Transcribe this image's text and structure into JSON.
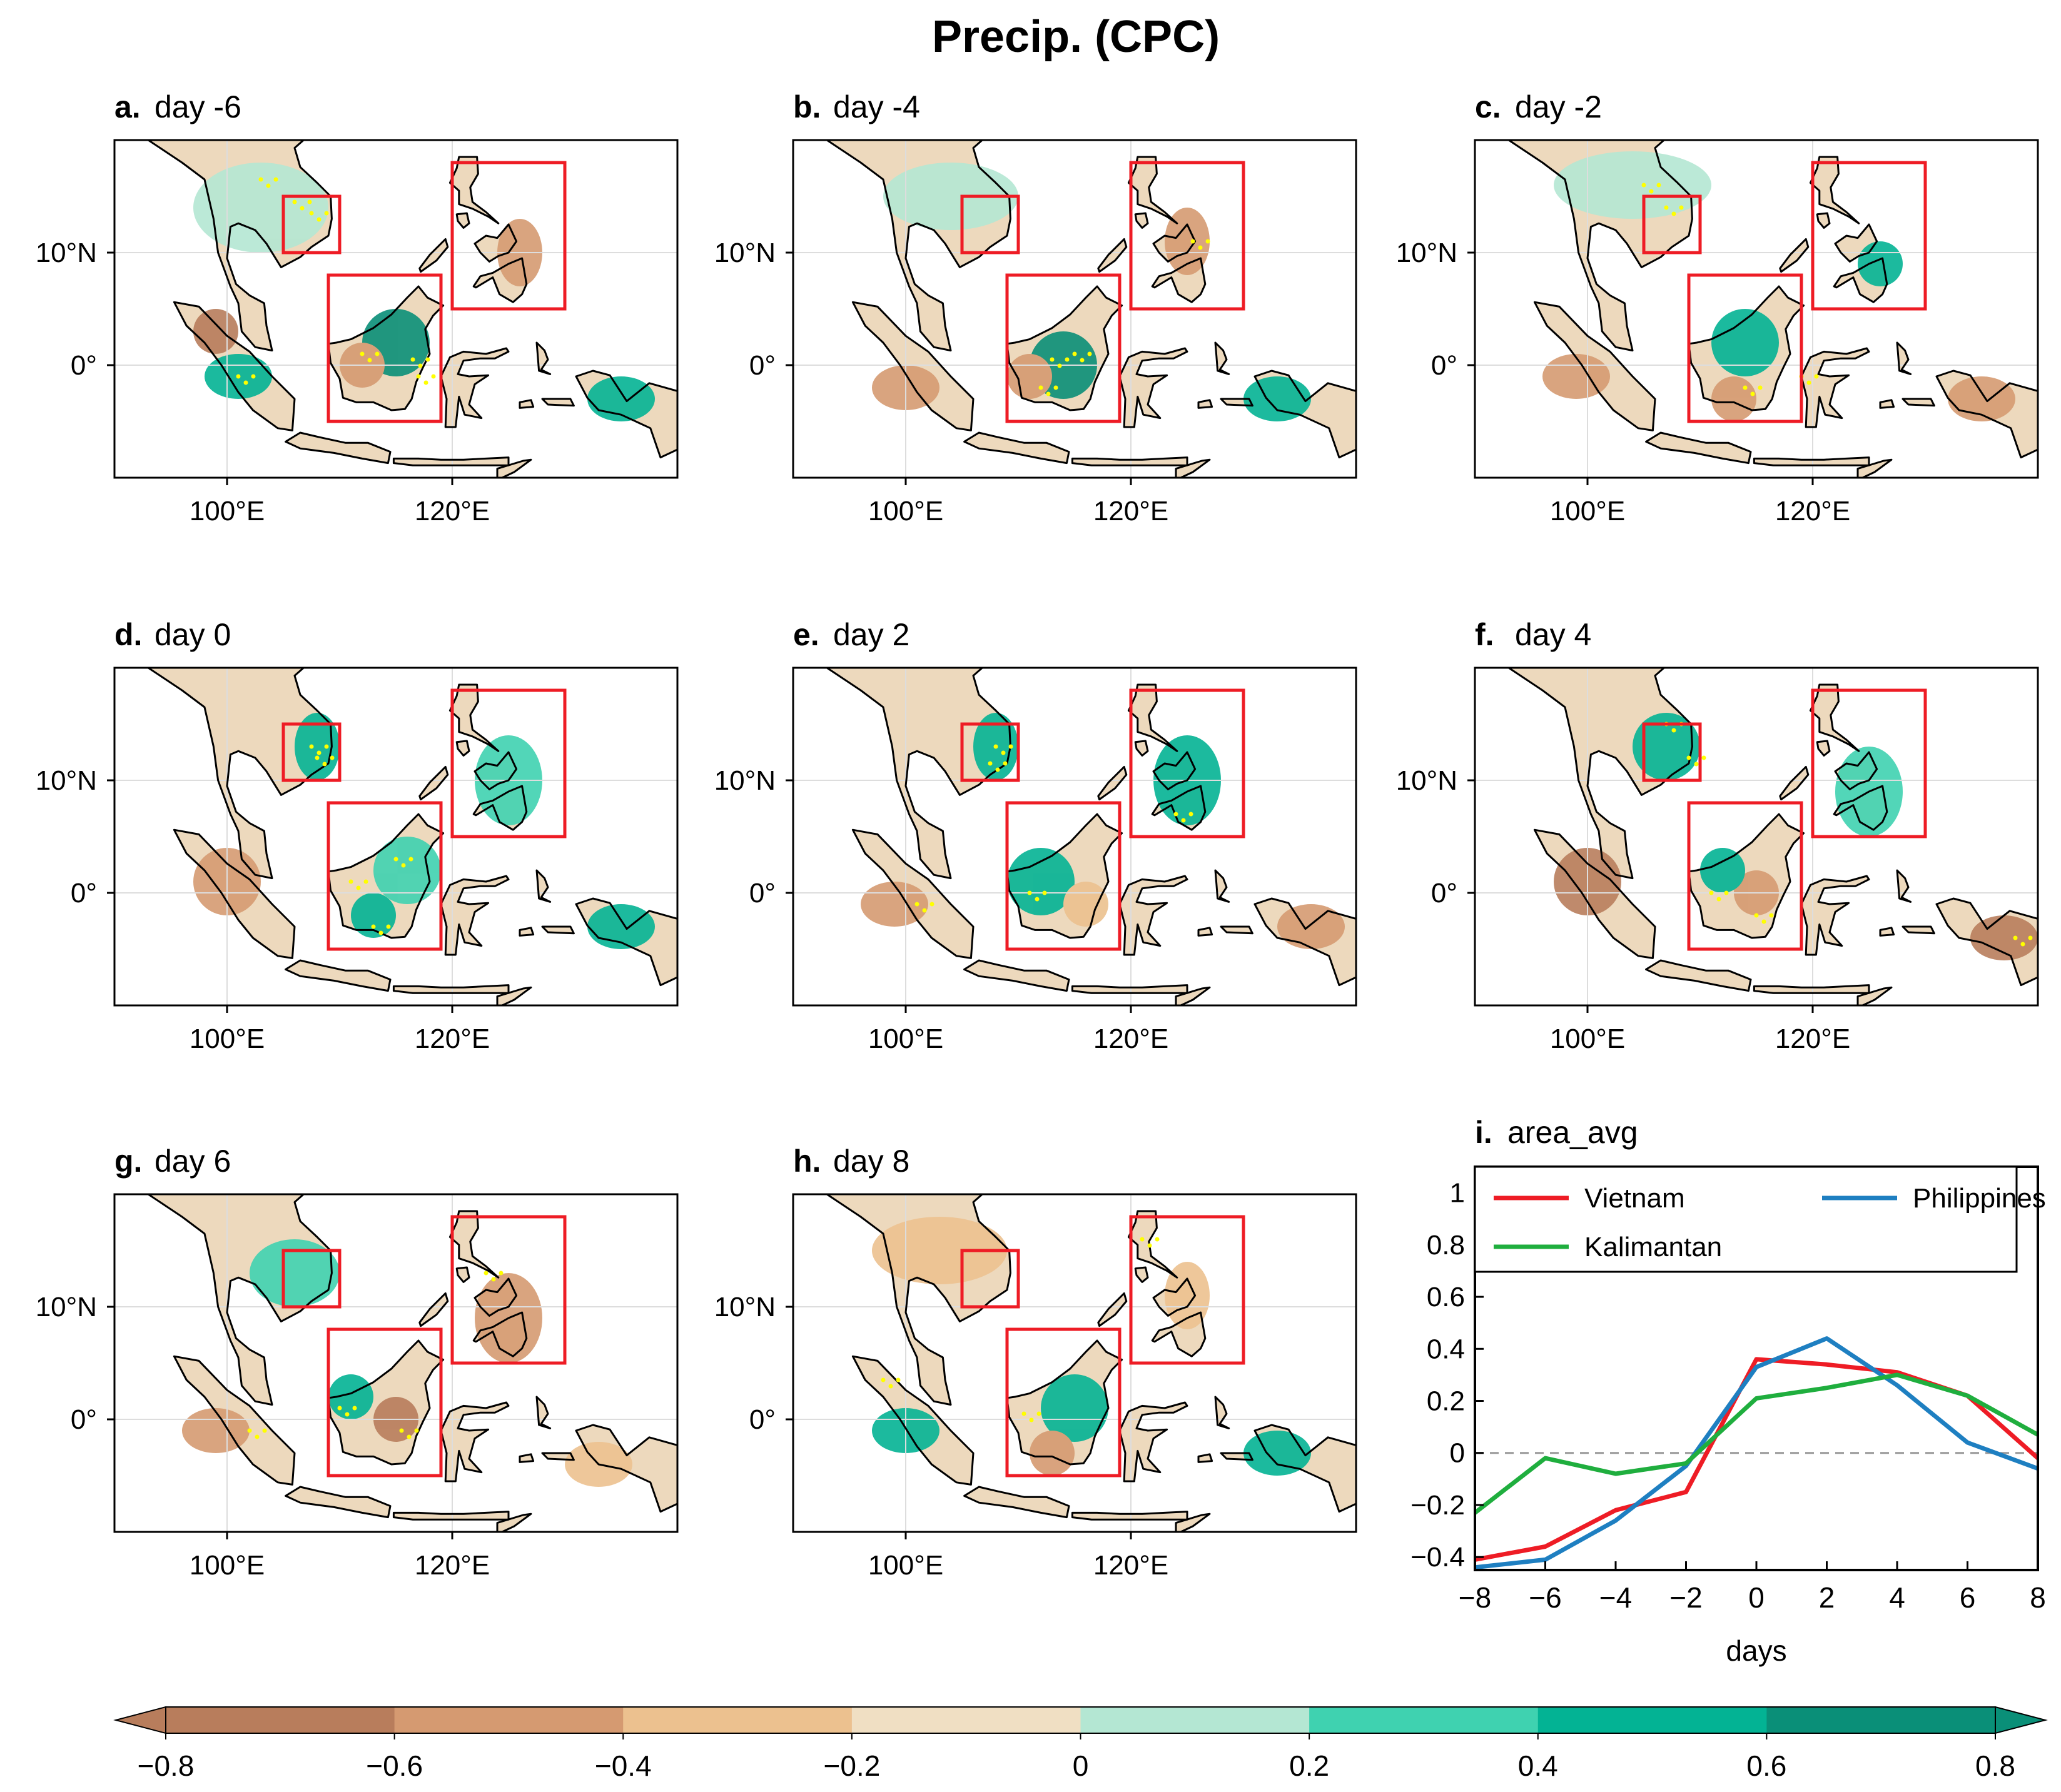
{
  "title": "Precip. (CPC)",
  "panels": [
    {
      "letter": "a.",
      "label": "day -6"
    },
    {
      "letter": "b.",
      "label": "day -4"
    },
    {
      "letter": "c.",
      "label": "day -2"
    },
    {
      "letter": "d.",
      "label": "day 0"
    },
    {
      "letter": "e.",
      "label": "day 2"
    },
    {
      "letter": "f.",
      "label": "day 4"
    },
    {
      "letter": "g.",
      "label": "day 6"
    },
    {
      "letter": "h.",
      "label": "day 8"
    }
  ],
  "map_axes": {
    "lon_range": [
      90,
      140
    ],
    "lat_range": [
      -10,
      20
    ],
    "xticks": [
      {
        "value": 100,
        "label": "100°E"
      },
      {
        "value": 120,
        "label": "120°E"
      }
    ],
    "yticks": [
      {
        "value": 10,
        "label": "10°N"
      },
      {
        "value": 0,
        "label": "0°"
      }
    ]
  },
  "regions": [
    {
      "name": "Vietnam",
      "lon": [
        105,
        110
      ],
      "lat": [
        10,
        15
      ]
    },
    {
      "name": "Kalimantan",
      "lon": [
        109,
        119
      ],
      "lat": [
        -5,
        8
      ]
    },
    {
      "name": "Philippines",
      "lon": [
        120,
        130
      ],
      "lat": [
        5,
        18
      ]
    }
  ],
  "colorbar": {
    "levels": [
      -0.8,
      -0.6,
      -0.4,
      -0.2,
      0,
      0.2,
      0.4,
      0.6,
      0.8
    ],
    "tick_labels": [
      "−0.8",
      "−0.6",
      "−0.4",
      "−0.2",
      "0",
      "0.2",
      "0.4",
      "0.6",
      "0.8"
    ],
    "colors": [
      "#b87d5c",
      "#d59a71",
      "#ecc18f",
      "#f0dfc3",
      "#b4e7d3",
      "#3fd2b0",
      "#03b394",
      "#0a8f78"
    ],
    "extend": "both"
  },
  "chart_data": {
    "type": "line",
    "panel_letter": "i.",
    "title": "area_avg",
    "xlabel": "days",
    "ylabel": "",
    "x": [
      -8,
      -6,
      -4,
      -2,
      0,
      2,
      4,
      6,
      8
    ],
    "xlim": [
      -8,
      8
    ],
    "ylim": [
      -0.45,
      1.1
    ],
    "xticks": [
      -8,
      -6,
      -4,
      -2,
      0,
      2,
      4,
      6,
      8
    ],
    "xtick_labels": [
      "−8",
      "−6",
      "−4",
      "−2",
      "0",
      "2",
      "4",
      "6",
      "8"
    ],
    "yticks": [
      -0.4,
      -0.2,
      0,
      0.2,
      0.4,
      0.6,
      0.8,
      1
    ],
    "ytick_labels": [
      "−0.4",
      "−0.2",
      "0",
      "0.2",
      "0.4",
      "0.6",
      "0.8",
      "1"
    ],
    "reference_line": 0,
    "legend_position": "top",
    "series": [
      {
        "name": "Vietnam",
        "color": "#ee1c25",
        "values": [
          -0.41,
          -0.36,
          -0.22,
          -0.15,
          0.36,
          0.34,
          0.31,
          0.22,
          -0.02
        ]
      },
      {
        "name": "Philippines",
        "color": "#1e7fc1",
        "values": [
          -0.44,
          -0.41,
          -0.26,
          -0.05,
          0.33,
          0.44,
          0.26,
          0.04,
          -0.06
        ]
      },
      {
        "name": "Kalimantan",
        "color": "#1fae3e",
        "values": [
          -0.23,
          -0.02,
          -0.08,
          -0.04,
          0.21,
          0.25,
          0.3,
          0.22,
          0.07
        ]
      }
    ]
  }
}
